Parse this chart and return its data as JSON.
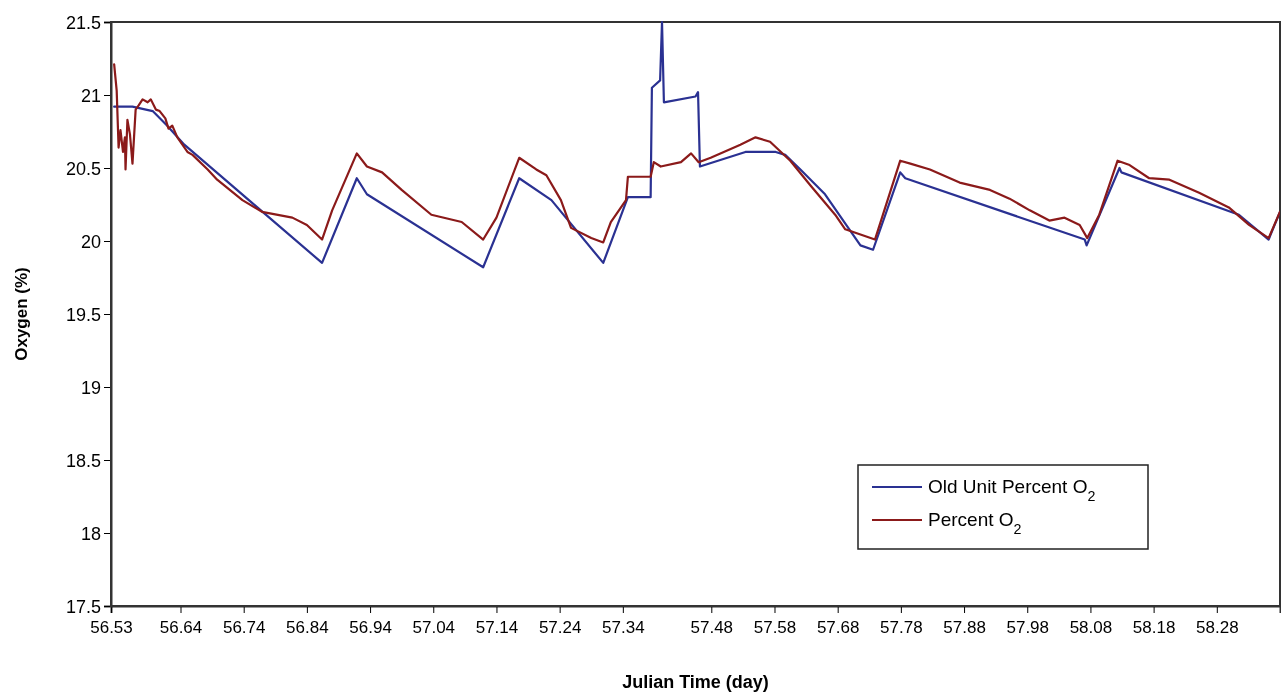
{
  "chart_data": {
    "type": "line",
    "xlabel": "Julian Time (day)",
    "ylabel": "Oxygen (%)",
    "xlim": [
      56.53,
      58.38
    ],
    "xticks": [
      56.53,
      56.64,
      56.74,
      56.84,
      56.94,
      57.04,
      57.14,
      57.24,
      57.34,
      57.48,
      57.58,
      57.68,
      57.78,
      57.88,
      57.98,
      58.08,
      58.18,
      58.28
    ],
    "ylim": [
      17.5,
      21.5
    ],
    "yticks": [
      17.5,
      18,
      18.5,
      19,
      19.5,
      20,
      20.5,
      21,
      21.5
    ],
    "grid": false,
    "legend": "bottom right",
    "line_style": "solid",
    "marker": "none",
    "series": [
      {
        "name": "Old Unit Percent O$_{2}$",
        "color": "#2a3192",
        "x": [
          56.535,
          56.564,
          56.596,
          56.619,
          56.646,
          56.864,
          56.919,
          56.935,
          57.119,
          57.176,
          57.227,
          57.309,
          57.348,
          57.384,
          57.386,
          57.399,
          57.402,
          57.405,
          57.455,
          57.459,
          57.462,
          57.534,
          57.582,
          57.597,
          57.621,
          57.66,
          57.716,
          57.736,
          57.779,
          57.787,
          58.071,
          58.074,
          58.126,
          58.129,
          58.315,
          58.362,
          58.38
        ],
        "values": [
          20.92,
          20.92,
          20.89,
          20.79,
          20.66,
          19.85,
          20.43,
          20.32,
          19.82,
          20.43,
          20.28,
          19.85,
          20.3,
          20.3,
          21.05,
          21.1,
          21.5,
          20.95,
          20.99,
          21.02,
          20.51,
          20.61,
          20.61,
          20.59,
          20.49,
          20.32,
          19.97,
          19.94,
          20.47,
          20.43,
          20.01,
          19.97,
          20.5,
          20.47,
          20.18,
          20.01,
          20.2
        ]
      },
      {
        "name": "Percent O$_{2}$",
        "color": "#8b1a1a",
        "x": [
          56.535,
          56.539,
          56.542,
          56.545,
          56.549,
          56.552,
          56.553,
          56.556,
          56.56,
          56.564,
          56.569,
          56.574,
          56.58,
          56.588,
          56.593,
          56.601,
          56.607,
          56.616,
          56.621,
          56.627,
          56.635,
          56.651,
          56.659,
          56.683,
          56.698,
          56.738,
          56.769,
          56.817,
          56.84,
          56.864,
          56.88,
          56.919,
          56.935,
          56.959,
          56.99,
          57.037,
          57.085,
          57.119,
          57.14,
          57.176,
          57.203,
          57.219,
          57.242,
          57.258,
          57.29,
          57.309,
          57.321,
          57.345,
          57.348,
          57.384,
          57.389,
          57.4,
          57.432,
          57.448,
          57.46,
          57.479,
          57.526,
          57.55,
          57.573,
          57.605,
          57.637,
          57.676,
          57.692,
          57.739,
          57.779,
          57.795,
          57.826,
          57.873,
          57.921,
          57.952,
          57.984,
          58.015,
          58.039,
          58.063,
          58.075,
          58.094,
          58.123,
          58.142,
          58.173,
          58.205,
          58.252,
          58.299,
          58.331,
          58.362,
          58.38
        ],
        "values": [
          21.21,
          21.03,
          20.64,
          20.76,
          20.61,
          20.71,
          20.49,
          20.83,
          20.73,
          20.53,
          20.9,
          20.93,
          20.97,
          20.95,
          20.97,
          20.9,
          20.89,
          20.84,
          20.77,
          20.79,
          20.71,
          20.61,
          20.59,
          20.49,
          20.42,
          20.28,
          20.2,
          20.16,
          20.11,
          20.01,
          20.21,
          20.6,
          20.51,
          20.47,
          20.35,
          20.18,
          20.13,
          20.01,
          20.16,
          20.57,
          20.49,
          20.45,
          20.28,
          20.09,
          20.02,
          19.99,
          20.13,
          20.28,
          20.44,
          20.44,
          20.54,
          20.51,
          20.54,
          20.6,
          20.54,
          20.57,
          20.66,
          20.71,
          20.68,
          20.55,
          20.38,
          20.18,
          20.08,
          20.01,
          20.55,
          20.53,
          20.49,
          20.4,
          20.35,
          20.29,
          20.21,
          20.14,
          20.16,
          20.11,
          20.02,
          20.18,
          20.55,
          20.52,
          20.43,
          20.42,
          20.33,
          20.23,
          20.11,
          20.02,
          20.2
        ]
      }
    ]
  }
}
